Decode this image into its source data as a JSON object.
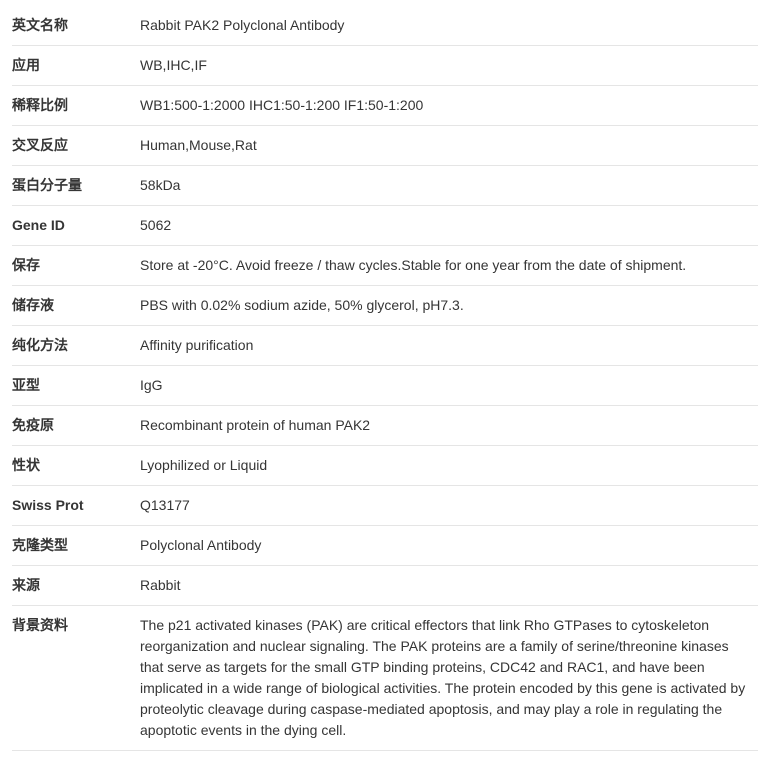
{
  "rows": [
    {
      "label": "英文名称",
      "value": "Rabbit PAK2 Polyclonal Antibody"
    },
    {
      "label": "应用",
      "value": "WB,IHC,IF"
    },
    {
      "label": "稀释比例",
      "value": "WB1:500-1:2000 IHC1:50-1:200 IF1:50-1:200"
    },
    {
      "label": "交叉反应",
      "value": "Human,Mouse,Rat"
    },
    {
      "label": "蛋白分子量",
      "value": "58kDa"
    },
    {
      "label": "Gene ID",
      "value": "5062"
    },
    {
      "label": "保存",
      "value": "Store at -20°C. Avoid freeze / thaw cycles.Stable for one year from the date of shipment."
    },
    {
      "label": "储存液",
      "value": "PBS with 0.02% sodium azide, 50% glycerol, pH7.3."
    },
    {
      "label": "纯化方法",
      "value": "Affinity purification"
    },
    {
      "label": "亚型",
      "value": "IgG"
    },
    {
      "label": "免疫原",
      "value": "Recombinant protein of human PAK2"
    },
    {
      "label": "性状",
      "value": "Lyophilized or Liquid"
    },
    {
      "label": "Swiss Prot",
      "value": "Q13177"
    },
    {
      "label": "克隆类型",
      "value": "Polyclonal Antibody"
    },
    {
      "label": "来源",
      "value": "Rabbit"
    },
    {
      "label": "背景资料",
      "value": "The p21 activated kinases (PAK) are critical effectors that link Rho GTPases to cytoskeleton reorganization and nuclear signaling. The PAK proteins are a family of serine/threonine kinases that serve as targets for the small GTP binding proteins, CDC42 and RAC1, and have been implicated in a wide range of biological activities. The protein encoded by this gene is activated by proteolytic cleavage during caspase-mediated apoptosis, and may play a role in regulating the apoptotic events in the dying cell."
    }
  ]
}
